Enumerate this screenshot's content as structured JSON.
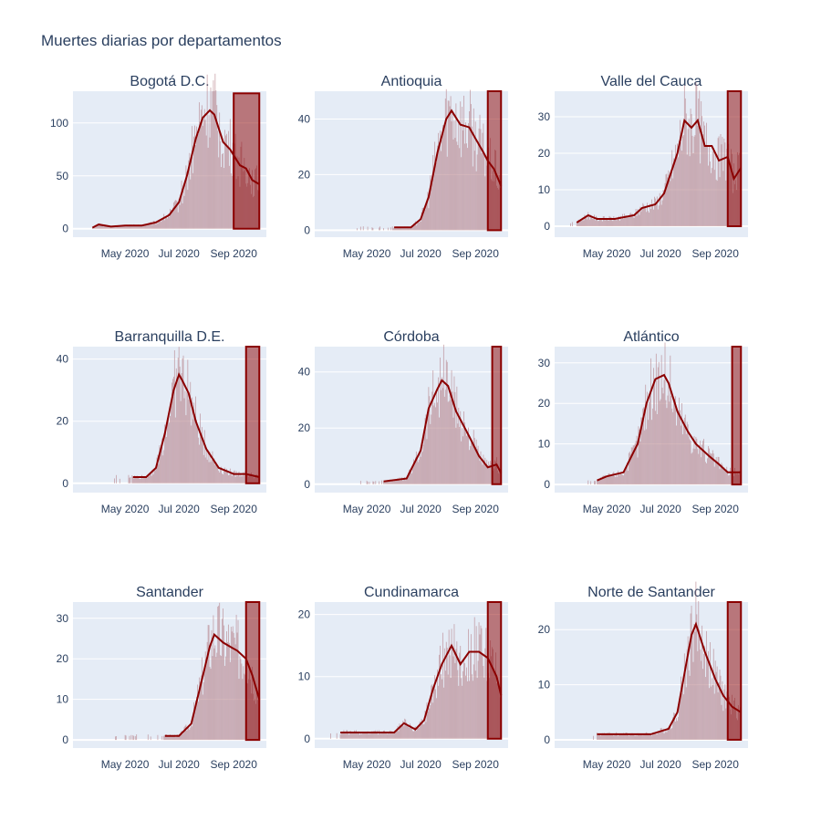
{
  "title": "Muertes diarias por departamentos",
  "chart_data": [
    {
      "type": "bar",
      "title": "Bogotá D.C.",
      "x_ticks": [
        "May 2020",
        "Jul 2020",
        "Sep 2020"
      ],
      "y_ticks": [
        0,
        50,
        100
      ],
      "ylim": [
        -8,
        130
      ],
      "highlight": {
        "from": "2020-09-01",
        "to": "2020-09-30",
        "top": 128
      },
      "start": "2020-03-25",
      "end": "2020-09-30",
      "moving_average": [
        {
          "date": "2020-03-25",
          "value": 1
        },
        {
          "date": "2020-04-01",
          "value": 4
        },
        {
          "date": "2020-04-15",
          "value": 2
        },
        {
          "date": "2020-05-01",
          "value": 3
        },
        {
          "date": "2020-05-20",
          "value": 3
        },
        {
          "date": "2020-06-05",
          "value": 6
        },
        {
          "date": "2020-06-20",
          "value": 13
        },
        {
          "date": "2020-07-01",
          "value": 25
        },
        {
          "date": "2020-07-10",
          "value": 50
        },
        {
          "date": "2020-07-20",
          "value": 85
        },
        {
          "date": "2020-07-28",
          "value": 105
        },
        {
          "date": "2020-08-05",
          "value": 112
        },
        {
          "date": "2020-08-10",
          "value": 108
        },
        {
          "date": "2020-08-15",
          "value": 95
        },
        {
          "date": "2020-08-20",
          "value": 82
        },
        {
          "date": "2020-08-28",
          "value": 75
        },
        {
          "date": "2020-09-02",
          "value": 68
        },
        {
          "date": "2020-09-08",
          "value": 60
        },
        {
          "date": "2020-09-15",
          "value": 57
        },
        {
          "date": "2020-09-22",
          "value": 46
        },
        {
          "date": "2020-09-30",
          "value": 42
        }
      ]
    },
    {
      "type": "bar",
      "title": "Antioquia",
      "x_ticks": [
        "May 2020",
        "Jul 2020",
        "Sep 2020"
      ],
      "y_ticks": [
        0,
        20,
        40
      ],
      "ylim": [
        -2.5,
        50
      ],
      "highlight": {
        "from": "2020-09-15",
        "to": "2020-09-30",
        "top": 50
      },
      "start": "2020-04-15",
      "end": "2020-09-30",
      "moving_average": [
        {
          "date": "2020-06-01",
          "value": 1
        },
        {
          "date": "2020-06-20",
          "value": 1
        },
        {
          "date": "2020-07-01",
          "value": 4
        },
        {
          "date": "2020-07-10",
          "value": 12
        },
        {
          "date": "2020-07-20",
          "value": 28
        },
        {
          "date": "2020-07-30",
          "value": 40
        },
        {
          "date": "2020-08-05",
          "value": 43
        },
        {
          "date": "2020-08-15",
          "value": 38
        },
        {
          "date": "2020-08-25",
          "value": 37
        },
        {
          "date": "2020-09-01",
          "value": 33
        },
        {
          "date": "2020-09-10",
          "value": 28
        },
        {
          "date": "2020-09-15",
          "value": 25
        },
        {
          "date": "2020-09-22",
          "value": 22
        },
        {
          "date": "2020-09-30",
          "value": 16
        }
      ]
    },
    {
      "type": "bar",
      "title": "Valle del Cauca",
      "x_ticks": [
        "May 2020",
        "Jul 2020",
        "Sep 2020"
      ],
      "y_ticks": [
        0,
        10,
        20,
        30
      ],
      "ylim": [
        -3,
        37
      ],
      "highlight": {
        "from": "2020-09-15",
        "to": "2020-09-30",
        "top": 37
      },
      "start": "2020-03-20",
      "end": "2020-09-30",
      "moving_average": [
        {
          "date": "2020-03-28",
          "value": 1
        },
        {
          "date": "2020-04-10",
          "value": 3
        },
        {
          "date": "2020-04-20",
          "value": 2
        },
        {
          "date": "2020-05-10",
          "value": 2
        },
        {
          "date": "2020-06-01",
          "value": 3
        },
        {
          "date": "2020-06-10",
          "value": 5
        },
        {
          "date": "2020-06-25",
          "value": 6
        },
        {
          "date": "2020-07-05",
          "value": 9
        },
        {
          "date": "2020-07-20",
          "value": 20
        },
        {
          "date": "2020-07-28",
          "value": 29
        },
        {
          "date": "2020-08-05",
          "value": 27
        },
        {
          "date": "2020-08-12",
          "value": 29
        },
        {
          "date": "2020-08-20",
          "value": 22
        },
        {
          "date": "2020-08-28",
          "value": 22
        },
        {
          "date": "2020-09-05",
          "value": 18
        },
        {
          "date": "2020-09-15",
          "value": 19
        },
        {
          "date": "2020-09-22",
          "value": 13
        },
        {
          "date": "2020-09-30",
          "value": 16
        }
      ]
    },
    {
      "type": "bar",
      "title": "Barranquilla D.E.",
      "x_ticks": [
        "May 2020",
        "Jul 2020",
        "Sep 2020"
      ],
      "y_ticks": [
        0,
        20,
        40
      ],
      "ylim": [
        -3,
        44
      ],
      "highlight": {
        "from": "2020-09-15",
        "to": "2020-09-30",
        "top": 44
      },
      "start": "2020-04-15",
      "end": "2020-09-30",
      "moving_average": [
        {
          "date": "2020-05-10",
          "value": 2
        },
        {
          "date": "2020-05-25",
          "value": 2
        },
        {
          "date": "2020-06-05",
          "value": 5
        },
        {
          "date": "2020-06-15",
          "value": 16
        },
        {
          "date": "2020-06-25",
          "value": 30
        },
        {
          "date": "2020-07-01",
          "value": 35
        },
        {
          "date": "2020-07-05",
          "value": 33
        },
        {
          "date": "2020-07-12",
          "value": 29
        },
        {
          "date": "2020-07-20",
          "value": 20
        },
        {
          "date": "2020-08-01",
          "value": 11
        },
        {
          "date": "2020-08-15",
          "value": 5
        },
        {
          "date": "2020-09-01",
          "value": 3
        },
        {
          "date": "2020-09-15",
          "value": 3
        },
        {
          "date": "2020-09-30",
          "value": 2
        }
      ]
    },
    {
      "type": "bar",
      "title": "Córdoba",
      "x_ticks": [
        "May 2020",
        "Jul 2020",
        "Sep 2020"
      ],
      "y_ticks": [
        0,
        20,
        40
      ],
      "ylim": [
        -3,
        49
      ],
      "highlight": {
        "from": "2020-09-20",
        "to": "2020-09-30",
        "top": 49
      },
      "start": "2020-04-20",
      "end": "2020-09-30",
      "moving_average": [
        {
          "date": "2020-05-20",
          "value": 1
        },
        {
          "date": "2020-06-15",
          "value": 2
        },
        {
          "date": "2020-07-01",
          "value": 12
        },
        {
          "date": "2020-07-10",
          "value": 27
        },
        {
          "date": "2020-07-20",
          "value": 34
        },
        {
          "date": "2020-07-25",
          "value": 37
        },
        {
          "date": "2020-08-01",
          "value": 35
        },
        {
          "date": "2020-08-10",
          "value": 26
        },
        {
          "date": "2020-08-25",
          "value": 17
        },
        {
          "date": "2020-09-05",
          "value": 10
        },
        {
          "date": "2020-09-15",
          "value": 6
        },
        {
          "date": "2020-09-25",
          "value": 7
        },
        {
          "date": "2020-09-30",
          "value": 4
        }
      ]
    },
    {
      "type": "bar",
      "title": "Atlántico",
      "x_ticks": [
        "May 2020",
        "Jul 2020",
        "Sep 2020"
      ],
      "y_ticks": [
        0,
        10,
        20,
        30
      ],
      "ylim": [
        -2,
        34
      ],
      "highlight": {
        "from": "2020-09-20",
        "to": "2020-09-30",
        "top": 34
      },
      "start": "2020-04-10",
      "end": "2020-09-30",
      "moving_average": [
        {
          "date": "2020-04-20",
          "value": 1
        },
        {
          "date": "2020-05-01",
          "value": 2
        },
        {
          "date": "2020-05-20",
          "value": 3
        },
        {
          "date": "2020-06-05",
          "value": 10
        },
        {
          "date": "2020-06-15",
          "value": 20
        },
        {
          "date": "2020-06-25",
          "value": 26
        },
        {
          "date": "2020-07-05",
          "value": 27
        },
        {
          "date": "2020-07-10",
          "value": 25
        },
        {
          "date": "2020-07-20",
          "value": 18
        },
        {
          "date": "2020-08-01",
          "value": 13
        },
        {
          "date": "2020-08-10",
          "value": 10
        },
        {
          "date": "2020-08-25",
          "value": 7
        },
        {
          "date": "2020-09-05",
          "value": 5
        },
        {
          "date": "2020-09-15",
          "value": 3
        },
        {
          "date": "2020-09-30",
          "value": 3
        }
      ]
    },
    {
      "type": "bar",
      "title": "Santander",
      "x_ticks": [
        "May 2020",
        "Jul 2020",
        "Sep 2020"
      ],
      "y_ticks": [
        0,
        10,
        20,
        30
      ],
      "ylim": [
        -2,
        34
      ],
      "highlight": {
        "from": "2020-09-15",
        "to": "2020-09-30",
        "top": 34
      },
      "start": "2020-04-20",
      "end": "2020-09-30",
      "moving_average": [
        {
          "date": "2020-06-15",
          "value": 1
        },
        {
          "date": "2020-07-01",
          "value": 1
        },
        {
          "date": "2020-07-15",
          "value": 4
        },
        {
          "date": "2020-07-25",
          "value": 13
        },
        {
          "date": "2020-08-05",
          "value": 23
        },
        {
          "date": "2020-08-10",
          "value": 26
        },
        {
          "date": "2020-08-20",
          "value": 24
        },
        {
          "date": "2020-08-28",
          "value": 23
        },
        {
          "date": "2020-09-05",
          "value": 22
        },
        {
          "date": "2020-09-15",
          "value": 20
        },
        {
          "date": "2020-09-22",
          "value": 16
        },
        {
          "date": "2020-09-30",
          "value": 10
        }
      ]
    },
    {
      "type": "bar",
      "title": "Cundinamarca",
      "x_ticks": [
        "May 2020",
        "Jul 2020",
        "Sep 2020"
      ],
      "y_ticks": [
        0,
        10,
        20
      ],
      "ylim": [
        -1.5,
        22
      ],
      "highlight": {
        "from": "2020-09-15",
        "to": "2020-09-30",
        "top": 22
      },
      "start": "2020-03-20",
      "end": "2020-09-30",
      "moving_average": [
        {
          "date": "2020-04-01",
          "value": 1
        },
        {
          "date": "2020-05-01",
          "value": 1
        },
        {
          "date": "2020-06-01",
          "value": 1
        },
        {
          "date": "2020-06-12",
          "value": 2.5
        },
        {
          "date": "2020-06-25",
          "value": 1.5
        },
        {
          "date": "2020-07-05",
          "value": 3
        },
        {
          "date": "2020-07-15",
          "value": 8
        },
        {
          "date": "2020-07-25",
          "value": 12
        },
        {
          "date": "2020-08-05",
          "value": 15
        },
        {
          "date": "2020-08-15",
          "value": 12
        },
        {
          "date": "2020-08-25",
          "value": 14
        },
        {
          "date": "2020-09-05",
          "value": 14
        },
        {
          "date": "2020-09-15",
          "value": 13
        },
        {
          "date": "2020-09-25",
          "value": 10
        },
        {
          "date": "2020-09-30",
          "value": 7
        }
      ]
    },
    {
      "type": "bar",
      "title": "Norte de Santander",
      "x_ticks": [
        "May 2020",
        "Jul 2020",
        "Sep 2020"
      ],
      "y_ticks": [
        0,
        10,
        20
      ],
      "ylim": [
        -1.5,
        25
      ],
      "highlight": {
        "from": "2020-09-15",
        "to": "2020-09-30",
        "top": 25
      },
      "start": "2020-04-10",
      "end": "2020-09-30",
      "moving_average": [
        {
          "date": "2020-04-20",
          "value": 1
        },
        {
          "date": "2020-05-20",
          "value": 1
        },
        {
          "date": "2020-06-20",
          "value": 1
        },
        {
          "date": "2020-07-10",
          "value": 2
        },
        {
          "date": "2020-07-20",
          "value": 5
        },
        {
          "date": "2020-07-28",
          "value": 12
        },
        {
          "date": "2020-08-05",
          "value": 19
        },
        {
          "date": "2020-08-10",
          "value": 21
        },
        {
          "date": "2020-08-20",
          "value": 16
        },
        {
          "date": "2020-09-01",
          "value": 11
        },
        {
          "date": "2020-09-10",
          "value": 8
        },
        {
          "date": "2020-09-20",
          "value": 6
        },
        {
          "date": "2020-09-30",
          "value": 5
        }
      ]
    }
  ]
}
